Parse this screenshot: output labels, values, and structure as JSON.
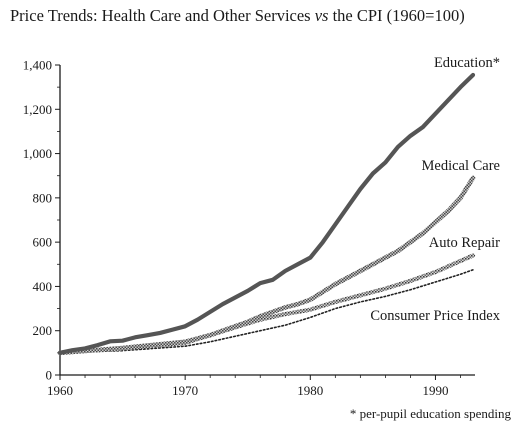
{
  "title": {
    "prefix": "Price Trends: Health Care and Other Services ",
    "vs": "vs",
    "suffix": " the CPI (1960=100)"
  },
  "footnote": "* per-pupil education spending",
  "chart_data": {
    "type": "line",
    "xlim": [
      1960,
      1993
    ],
    "ylim": [
      0,
      1400
    ],
    "x_ticks": [
      1960,
      1970,
      1980,
      1990
    ],
    "x_tick_labels": [
      "1960",
      "1970",
      "1980",
      "1990"
    ],
    "y_ticks": [
      0,
      200,
      400,
      600,
      800,
      1000,
      1200,
      1400
    ],
    "y_tick_labels": [
      "0",
      "200",
      "400",
      "600",
      "800",
      "1,000",
      "1,200",
      "1,400"
    ],
    "grid": false,
    "series": [
      {
        "name": "Education*",
        "color": "#555555",
        "style": "solid-thick",
        "x": [
          1960,
          1961,
          1962,
          1963,
          1964,
          1965,
          1966,
          1967,
          1968,
          1969,
          1970,
          1971,
          1972,
          1973,
          1974,
          1975,
          1976,
          1977,
          1978,
          1979,
          1980,
          1981,
          1982,
          1983,
          1984,
          1985,
          1986,
          1987,
          1988,
          1989,
          1990,
          1991,
          1992,
          1993
        ],
        "values": [
          100,
          112,
          120,
          135,
          152,
          155,
          170,
          180,
          190,
          205,
          220,
          250,
          285,
          320,
          350,
          380,
          415,
          430,
          470,
          500,
          530,
          600,
          680,
          760,
          840,
          910,
          960,
          1030,
          1080,
          1120,
          1180,
          1240,
          1300,
          1355
        ]
      },
      {
        "name": "Medical Care",
        "color": "#7a7a7a",
        "style": "hatched",
        "x": [
          1960,
          1965,
          1970,
          1971,
          1972,
          1973,
          1974,
          1975,
          1976,
          1977,
          1978,
          1979,
          1980,
          1981,
          1982,
          1983,
          1984,
          1985,
          1986,
          1987,
          1988,
          1989,
          1990,
          1991,
          1992,
          1993
        ],
        "values": [
          100,
          122,
          150,
          165,
          180,
          200,
          220,
          240,
          265,
          285,
          305,
          320,
          340,
          375,
          410,
          440,
          470,
          500,
          530,
          560,
          600,
          640,
          690,
          740,
          800,
          890
        ]
      },
      {
        "name": "Auto Repair",
        "color": "#888888",
        "style": "hatched",
        "x": [
          1960,
          1965,
          1970,
          1972,
          1974,
          1976,
          1978,
          1980,
          1982,
          1984,
          1986,
          1988,
          1990,
          1992,
          1993
        ],
        "values": [
          100,
          120,
          145,
          180,
          215,
          250,
          275,
          295,
          330,
          360,
          390,
          425,
          465,
          515,
          540
        ]
      },
      {
        "name": "Consumer Price Index",
        "color": "#222222",
        "style": "dotted",
        "x": [
          1960,
          1965,
          1970,
          1972,
          1974,
          1976,
          1978,
          1980,
          1982,
          1984,
          1986,
          1988,
          1990,
          1992,
          1993
        ],
        "values": [
          100,
          110,
          130,
          150,
          175,
          200,
          225,
          260,
          300,
          330,
          355,
          385,
          420,
          455,
          475
        ]
      }
    ]
  }
}
